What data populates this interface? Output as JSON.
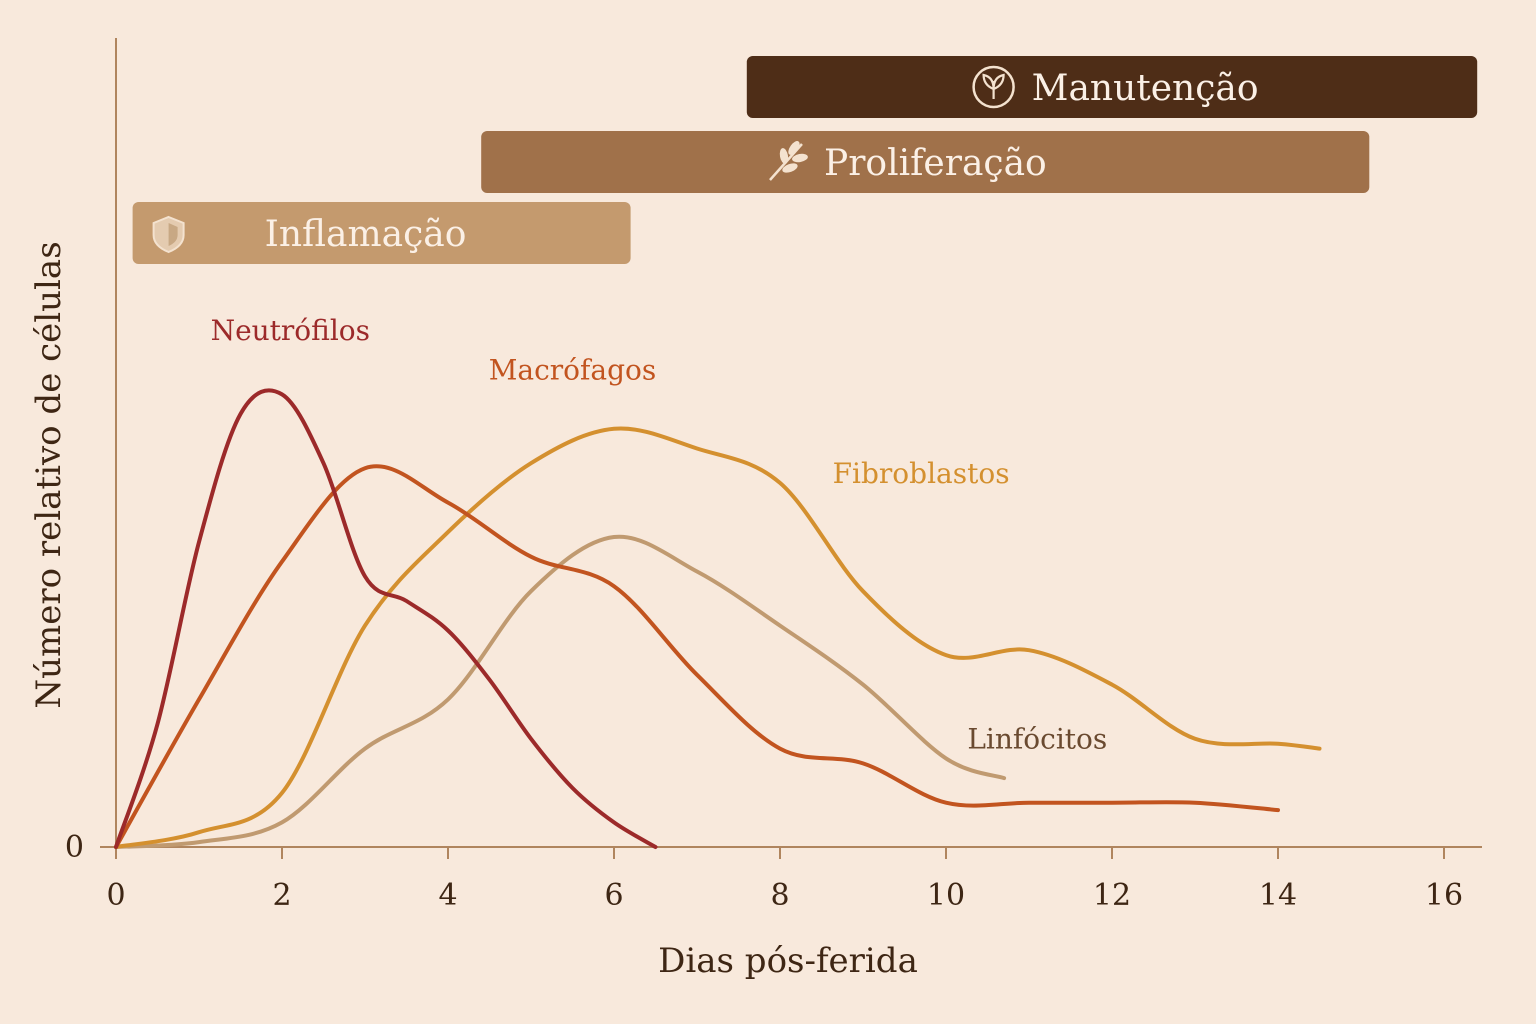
{
  "chart_data": {
    "type": "line",
    "xlabel": "Dias pós-ferida",
    "ylabel": "Número relativo de células",
    "xlim": [
      0,
      16
    ],
    "ylim": [
      0,
      1
    ],
    "x_ticks": [
      "0",
      "2",
      "4",
      "6",
      "8",
      "10",
      "12",
      "14",
      "16"
    ],
    "y_ticks": [
      "0"
    ],
    "grid": false,
    "phases": [
      {
        "name": "Inflamação",
        "start": 0.2,
        "end": 6.2,
        "color": "#c49a6e",
        "icon": "shield-icon"
      },
      {
        "name": "Proliferação",
        "start": 4.4,
        "end": 15.1,
        "color": "#a0714a",
        "icon": "leaf-sprig-icon"
      },
      {
        "name": "Manutenção",
        "start": 7.6,
        "end": 16.4,
        "color": "#4e2d17",
        "icon": "sprout-circle-icon"
      }
    ],
    "series": [
      {
        "name": "Neutrófilos",
        "color": "#9c2a2a",
        "x": [
          0,
          0.5,
          1,
          1.5,
          2,
          2.5,
          3,
          3.5,
          4,
          4.5,
          5,
          5.5,
          6,
          6.5
        ],
        "y": [
          0,
          0.25,
          0.62,
          0.88,
          0.92,
          0.78,
          0.55,
          0.5,
          0.44,
          0.34,
          0.22,
          0.12,
          0.05,
          0
        ]
      },
      {
        "name": "Macrófagos",
        "color": "#c2541f",
        "x": [
          0,
          1,
          2,
          3,
          4,
          5,
          6,
          7,
          8,
          9,
          10,
          11,
          12,
          13,
          14
        ],
        "y": [
          0,
          0.3,
          0.58,
          0.77,
          0.7,
          0.59,
          0.53,
          0.35,
          0.2,
          0.17,
          0.09,
          0.09,
          0.09,
          0.09,
          0.075
        ]
      },
      {
        "name": "Fibroblastos",
        "color": "#d4902f",
        "x": [
          0,
          1,
          2,
          3,
          4,
          5,
          6,
          7,
          8,
          9,
          10,
          11,
          12,
          13,
          14,
          14.5
        ],
        "y": [
          0,
          0.03,
          0.11,
          0.45,
          0.64,
          0.78,
          0.85,
          0.81,
          0.74,
          0.52,
          0.39,
          0.4,
          0.33,
          0.22,
          0.21,
          0.2
        ]
      },
      {
        "name": "Linfócitos",
        "color": "#c09a70",
        "x": [
          0,
          1,
          2,
          3,
          4,
          5,
          6,
          7,
          8,
          9,
          10,
          10.7
        ],
        "y": [
          0,
          0.01,
          0.05,
          0.2,
          0.3,
          0.52,
          0.63,
          0.56,
          0.45,
          0.33,
          0.18,
          0.14
        ]
      }
    ],
    "annotations": [
      {
        "text": "Neutrófilos",
        "x": 2.1,
        "y": 1.03,
        "color": "#9c2a2a"
      },
      {
        "text": "Macrófagos",
        "x": 5.5,
        "y": 0.95,
        "color": "#c2541f"
      },
      {
        "text": "Fibroblastos",
        "x": 9.7,
        "y": 0.74,
        "color": "#d4902f"
      },
      {
        "text": "Linfócitos",
        "x": 11.1,
        "y": 0.2,
        "color": "#6a4a30"
      }
    ]
  }
}
